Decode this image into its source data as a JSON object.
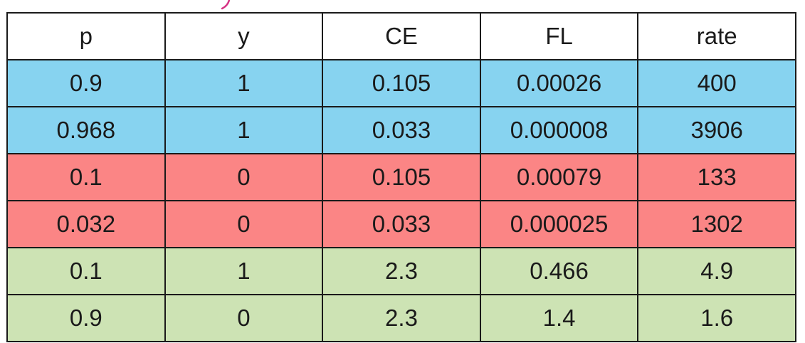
{
  "colors": {
    "blue": "#87d3f0",
    "red": "#fb8585",
    "green": "#cde3b4",
    "header": "#ffffff",
    "partial_stroke": "#d63384"
  },
  "table": {
    "columns": [
      "p",
      "y",
      "CE",
      "FL",
      "rate"
    ],
    "rows": [
      {
        "group": "blue",
        "cells": [
          "0.9",
          "1",
          "0.105",
          "0.00026",
          "400"
        ]
      },
      {
        "group": "blue",
        "cells": [
          "0.968",
          "1",
          "0.033",
          "0.000008",
          "3906"
        ]
      },
      {
        "group": "red",
        "cells": [
          "0.1",
          "0",
          "0.105",
          "0.00079",
          "133"
        ]
      },
      {
        "group": "red",
        "cells": [
          "0.032",
          "0",
          "0.033",
          "0.000025",
          "1302"
        ]
      },
      {
        "group": "green",
        "cells": [
          "0.1",
          "1",
          "2.3",
          "0.466",
          "4.9"
        ]
      },
      {
        "group": "green",
        "cells": [
          "0.9",
          "0",
          "2.3",
          "1.4",
          "1.6"
        ]
      }
    ]
  }
}
